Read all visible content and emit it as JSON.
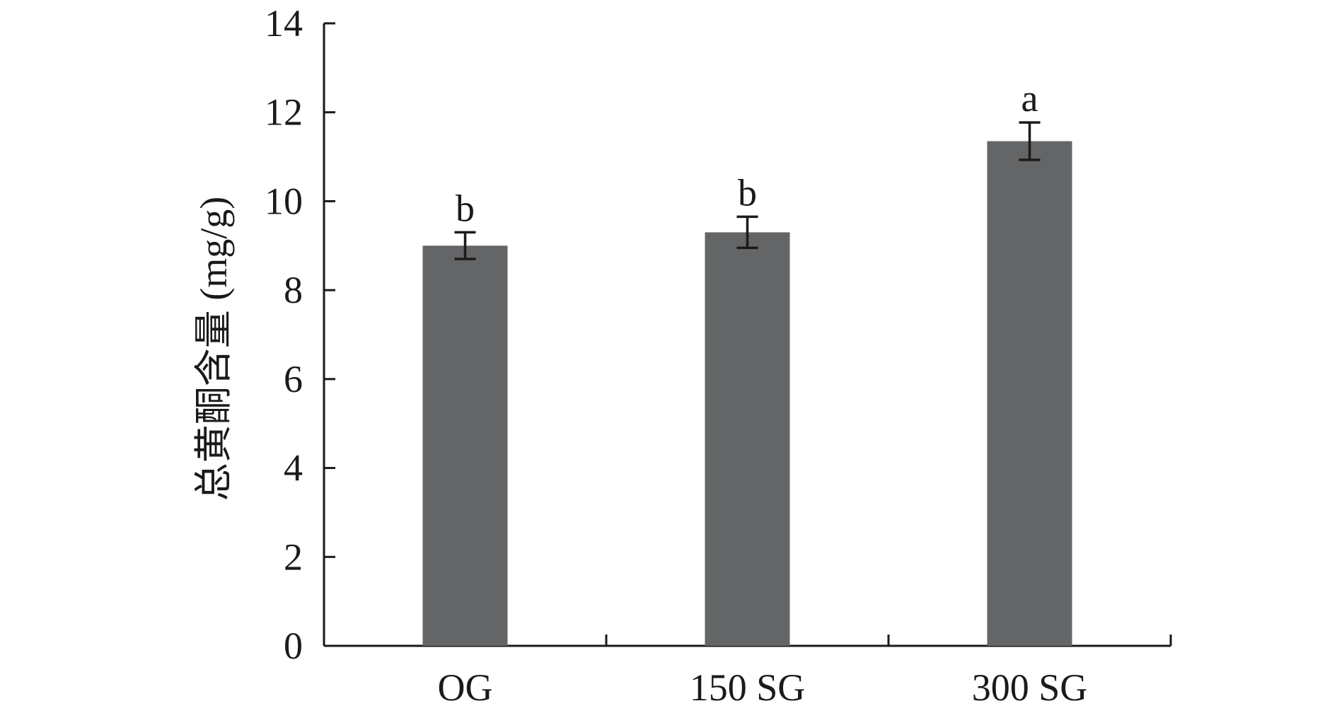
{
  "chart_data": {
    "type": "bar",
    "title": "",
    "xlabel": "",
    "ylabel": "总黄酮含量 (mg/g)",
    "categories": [
      "OG",
      "150 SG",
      "300 SG"
    ],
    "values": [
      9.0,
      9.3,
      11.35
    ],
    "error": [
      0.3,
      0.35,
      0.42
    ],
    "significance": [
      "b",
      "b",
      "a"
    ],
    "ylim": [
      0,
      14
    ],
    "yticks": [
      "0",
      "2",
      "4",
      "6",
      "8",
      "10",
      "12",
      "14"
    ],
    "grid": false,
    "legend": "none",
    "bar_color": "#646566",
    "axis_color": "#1a1a1a"
  }
}
